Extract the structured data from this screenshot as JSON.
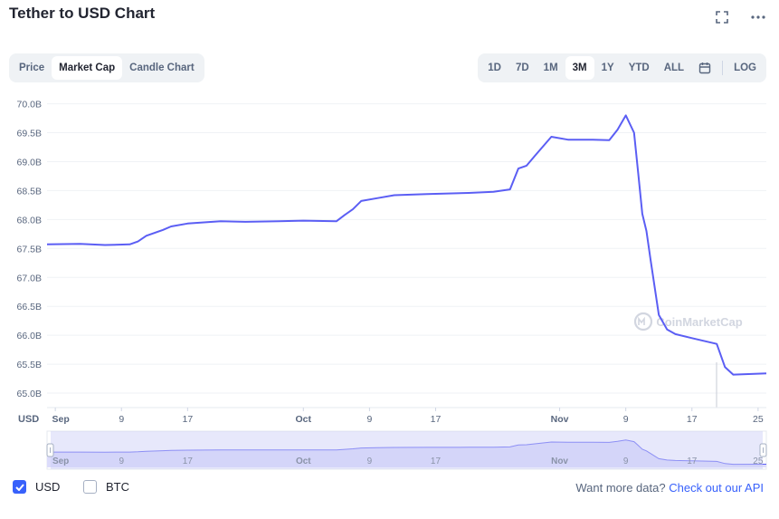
{
  "header": {
    "title": "Tether to USD Chart"
  },
  "view_tabs": [
    "Price",
    "Market Cap",
    "Candle Chart"
  ],
  "view_tabs_active": 1,
  "range_tabs": [
    "1D",
    "7D",
    "1M",
    "3M",
    "1Y",
    "YTD",
    "ALL"
  ],
  "range_tabs_active": 3,
  "log_label": "LOG",
  "watermark": "CoinMarketCap",
  "currencies": {
    "usd_label": "USD",
    "btc_label": "BTC"
  },
  "api_prompt": {
    "text": "Want more data?",
    "link": "Check out our API"
  },
  "chart_data": {
    "type": "line",
    "title": "Tether to USD Chart",
    "series": [
      {
        "name": "Market Cap",
        "color": "#5b5ef4"
      }
    ],
    "y_unit_label": "USD",
    "ylim": [
      64.75,
      70.15
    ],
    "yticks": [
      "70.0B",
      "69.5B",
      "69.0B",
      "68.5B",
      "68.0B",
      "67.5B",
      "67.0B",
      "66.5B",
      "66.0B",
      "65.5B",
      "65.0B"
    ],
    "ytick_values": [
      70.0,
      69.5,
      69.0,
      68.5,
      68.0,
      67.5,
      67.0,
      66.5,
      66.0,
      65.5,
      65.0
    ],
    "xlim": [
      0,
      87
    ],
    "xticks": [
      {
        "label": "Sep",
        "day": 1
      },
      {
        "label": "9",
        "day": 9
      },
      {
        "label": "17",
        "day": 17
      },
      {
        "label": "Oct",
        "day": 31
      },
      {
        "label": "9",
        "day": 39
      },
      {
        "label": "17",
        "day": 47
      },
      {
        "label": "Nov",
        "day": 62
      },
      {
        "label": "9",
        "day": 70
      },
      {
        "label": "17",
        "day": 78
      },
      {
        "label": "25",
        "day": 86
      }
    ],
    "x_day_origin": "Aug 31",
    "points": [
      [
        0,
        67.57
      ],
      [
        4,
        67.58
      ],
      [
        7,
        67.56
      ],
      [
        10,
        67.57
      ],
      [
        11,
        67.62
      ],
      [
        12,
        67.72
      ],
      [
        14,
        67.82
      ],
      [
        15,
        67.88
      ],
      [
        17,
        67.93
      ],
      [
        21,
        67.97
      ],
      [
        24,
        67.96
      ],
      [
        28,
        67.97
      ],
      [
        31,
        67.98
      ],
      [
        35,
        67.97
      ],
      [
        36,
        68.08
      ],
      [
        37,
        68.18
      ],
      [
        38,
        68.32
      ],
      [
        40,
        68.37
      ],
      [
        42,
        68.42
      ],
      [
        46,
        68.44
      ],
      [
        51,
        68.46
      ],
      [
        54,
        68.48
      ],
      [
        56,
        68.52
      ],
      [
        57,
        68.88
      ],
      [
        58,
        68.93
      ],
      [
        59,
        69.1
      ],
      [
        61,
        69.43
      ],
      [
        63,
        69.38
      ],
      [
        66,
        69.38
      ],
      [
        68,
        69.37
      ],
      [
        69,
        69.55
      ],
      [
        70,
        69.8
      ],
      [
        71,
        69.5
      ],
      [
        71.5,
        68.8
      ],
      [
        72,
        68.1
      ],
      [
        72.5,
        67.8
      ],
      [
        73,
        67.3
      ],
      [
        74,
        66.35
      ],
      [
        75,
        66.1
      ],
      [
        76,
        66.02
      ],
      [
        78,
        65.95
      ],
      [
        81,
        65.85
      ],
      [
        82,
        65.45
      ],
      [
        83,
        65.32
      ],
      [
        87,
        65.34
      ]
    ]
  }
}
